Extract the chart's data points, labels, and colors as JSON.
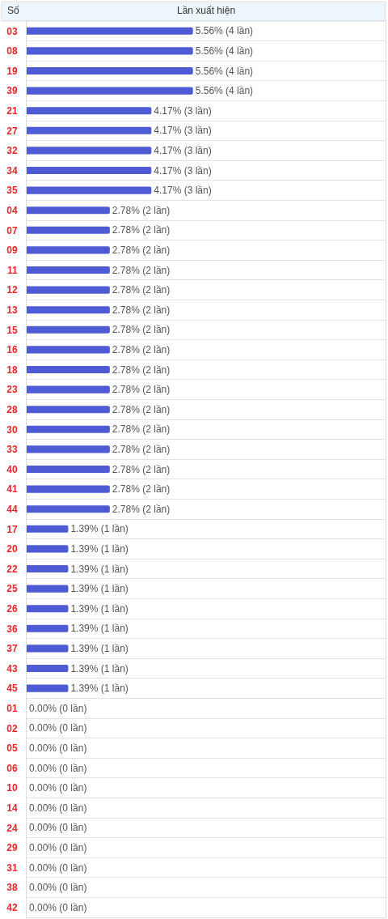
{
  "chart_data": {
    "type": "bar",
    "orientation": "horizontal",
    "xlabel": "Lần xuất hiện",
    "ylabel": "Số",
    "categories": [
      "03",
      "08",
      "19",
      "39",
      "21",
      "27",
      "32",
      "34",
      "35",
      "04",
      "07",
      "09",
      "11",
      "12",
      "13",
      "15",
      "16",
      "18",
      "23",
      "28",
      "30",
      "33",
      "40",
      "41",
      "44",
      "17",
      "20",
      "22",
      "25",
      "26",
      "36",
      "37",
      "43",
      "45",
      "01",
      "02",
      "05",
      "06",
      "10",
      "14",
      "24",
      "29",
      "31",
      "38",
      "42"
    ],
    "values": [
      5.56,
      5.56,
      5.56,
      5.56,
      4.17,
      4.17,
      4.17,
      4.17,
      4.17,
      2.78,
      2.78,
      2.78,
      2.78,
      2.78,
      2.78,
      2.78,
      2.78,
      2.78,
      2.78,
      2.78,
      2.78,
      2.78,
      2.78,
      2.78,
      2.78,
      1.39,
      1.39,
      1.39,
      1.39,
      1.39,
      1.39,
      1.39,
      1.39,
      1.39,
      0,
      0,
      0,
      0,
      0,
      0,
      0,
      0,
      0,
      0,
      0
    ],
    "value_labels": [
      "5.56% (4 lần)",
      "5.56% (4 lần)",
      "5.56% (4 lần)",
      "5.56% (4 lần)",
      "4.17% (3 lần)",
      "4.17% (3 lần)",
      "4.17% (3 lần)",
      "4.17% (3 lần)",
      "4.17% (3 lần)",
      "2.78% (2 lần)",
      "2.78% (2 lần)",
      "2.78% (2 lần)",
      "2.78% (2 lần)",
      "2.78% (2 lần)",
      "2.78% (2 lần)",
      "2.78% (2 lần)",
      "2.78% (2 lần)",
      "2.78% (2 lần)",
      "2.78% (2 lần)",
      "2.78% (2 lần)",
      "2.78% (2 lần)",
      "2.78% (2 lần)",
      "2.78% (2 lần)",
      "2.78% (2 lần)",
      "2.78% (2 lần)",
      "1.39% (1 lần)",
      "1.39% (1 lần)",
      "1.39% (1 lần)",
      "1.39% (1 lần)",
      "1.39% (1 lần)",
      "1.39% (1 lần)",
      "1.39% (1 lần)",
      "1.39% (1 lần)",
      "1.39% (1 lần)",
      "0.00% (0 lần)",
      "0.00% (0 lần)",
      "0.00% (0 lần)",
      "0.00% (0 lần)",
      "0.00% (0 lần)",
      "0.00% (0 lần)",
      "0.00% (0 lần)",
      "0.00% (0 lần)",
      "0.00% (0 lần)",
      "0.00% (0 lần)",
      "0.00% (0 lần)"
    ],
    "color": "#4f5bd5",
    "xlim": [
      0,
      12
    ],
    "tick_labels": "y",
    "grid": "y"
  }
}
